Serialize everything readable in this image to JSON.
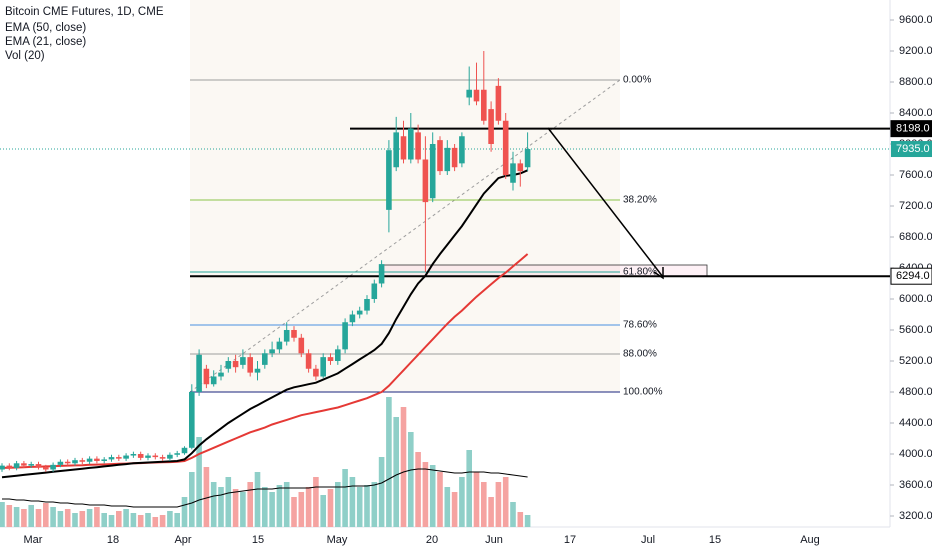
{
  "chart_data": {
    "type": "candlestick",
    "title": "Bitcoin CME Futures, 1D, CME",
    "indicators": [
      "EMA (50, close)",
      "EMA (21, close)",
      "Vol (20)"
    ],
    "up_color": "#26a69a",
    "down_color": "#ef5350",
    "open": [
      3800,
      3850,
      3820,
      3880,
      3850,
      3870,
      3830,
      3800,
      3860,
      3900,
      3880,
      3920,
      3900,
      3940,
      3910,
      3930,
      3960,
      3940,
      3980,
      4000,
      3950,
      3980,
      3960,
      3940,
      3990,
      4010,
      4080,
      4800,
      5100,
      4900,
      5000,
      5100,
      5200,
      5150,
      5250,
      5050,
      5150,
      5300,
      5350,
      5450,
      5600,
      5500,
      5300,
      5100,
      5000,
      5250,
      5200,
      5350,
      5700,
      5800,
      5850,
      6000,
      6200,
      7150,
      7700,
      8100,
      7800,
      8150,
      7800,
      7300,
      8050,
      7650,
      7950,
      7750,
      8600,
      8700,
      8700,
      8450,
      8750,
      8300,
      7500,
      7750,
      7700
    ],
    "high": [
      3880,
      3880,
      3910,
      3910,
      3900,
      3900,
      3860,
      3890,
      3930,
      3930,
      3950,
      3950,
      3970,
      3970,
      3960,
      3990,
      3990,
      4010,
      4030,
      4030,
      4010,
      4010,
      3990,
      4020,
      4040,
      4100,
      4900,
      5350,
      5150,
      5080,
      5150,
      5250,
      5280,
      5350,
      5300,
      5200,
      5350,
      5450,
      5500,
      5700,
      5650,
      5550,
      5350,
      5150,
      5300,
      5300,
      5400,
      5750,
      5850,
      5900,
      6050,
      6250,
      6500,
      8050,
      8350,
      8300,
      8400,
      8250,
      8100,
      8150,
      8100,
      8050,
      8000,
      8150,
      9000,
      9050,
      9200,
      8550,
      8850,
      8400,
      7900,
      7800,
      8150
    ],
    "low": [
      3770,
      3790,
      3790,
      3820,
      3820,
      3800,
      3770,
      3770,
      3830,
      3850,
      3850,
      3870,
      3870,
      3880,
      3880,
      3900,
      3910,
      3910,
      3950,
      3920,
      3920,
      3930,
      3910,
      3910,
      3960,
      3990,
      4060,
      4750,
      4850,
      4870,
      4950,
      5050,
      5050,
      5100,
      5000,
      4950,
      5100,
      5250,
      5300,
      5400,
      5450,
      5250,
      5050,
      4950,
      4980,
      5150,
      5150,
      5300,
      5650,
      5750,
      5800,
      5950,
      6150,
      6860,
      7650,
      7750,
      7750,
      7750,
      6350,
      7250,
      7600,
      7600,
      7650,
      7700,
      8500,
      8500,
      8250,
      7900,
      8250,
      7550,
      7400,
      7450,
      7650
    ],
    "close": [
      3850,
      3820,
      3880,
      3850,
      3870,
      3830,
      3800,
      3860,
      3900,
      3880,
      3920,
      3900,
      3940,
      3910,
      3930,
      3960,
      3940,
      3980,
      4000,
      3950,
      3980,
      3960,
      3940,
      3990,
      4010,
      4080,
      4800,
      5280,
      4900,
      5000,
      5050,
      5200,
      5120,
      5250,
      5050,
      5100,
      5300,
      5350,
      5450,
      5600,
      5500,
      5300,
      5100,
      5000,
      5250,
      5200,
      5350,
      5700,
      5800,
      5850,
      6000,
      6200,
      6450,
      7920,
      8150,
      7800,
      8200,
      7800,
      7250,
      8000,
      7650,
      7950,
      7700,
      8100,
      8700,
      8550,
      8300,
      8000,
      8300,
      7600,
      7750,
      7650,
      7935
    ],
    "lines": [
      {
        "name": "EMA (50, close)",
        "color": "#e53935",
        "values": [
          3820,
          3823,
          3826,
          3830,
          3833,
          3836,
          3840,
          3843,
          3846,
          3850,
          3853,
          3856,
          3860,
          3863,
          3866,
          3870,
          3873,
          3876,
          3880,
          3883,
          3886,
          3890,
          3893,
          3896,
          3900,
          3910,
          3950,
          4000,
          4040,
          4080,
          4120,
          4160,
          4200,
          4240,
          4280,
          4310,
          4340,
          4380,
          4410,
          4440,
          4470,
          4500,
          4520,
          4540,
          4560,
          4580,
          4600,
          4630,
          4660,
          4690,
          4720,
          4760,
          4800,
          4880,
          4980,
          5080,
          5180,
          5280,
          5380,
          5480,
          5580,
          5680,
          5770,
          5850,
          5940,
          6030,
          6110,
          6190,
          6270,
          6340,
          6420,
          6500,
          6580
        ]
      },
      {
        "name": "EMA (21, close)",
        "color": "#000000",
        "values": [
          3700,
          3710,
          3720,
          3730,
          3740,
          3750,
          3760,
          3770,
          3780,
          3790,
          3800,
          3810,
          3820,
          3830,
          3840,
          3850,
          3860,
          3870,
          3880,
          3885,
          3890,
          3895,
          3900,
          3905,
          3910,
          3930,
          4010,
          4110,
          4190,
          4260,
          4330,
          4400,
          4460,
          4520,
          4580,
          4630,
          4680,
          4730,
          4780,
          4830,
          4860,
          4880,
          4900,
          4920,
          4960,
          5000,
          5040,
          5100,
          5160,
          5220,
          5280,
          5340,
          5420,
          5560,
          5740,
          5900,
          6060,
          6200,
          6300,
          6450,
          6580,
          6700,
          6820,
          6940,
          7080,
          7220,
          7360,
          7460,
          7560,
          7590,
          7600,
          7620,
          7660
        ]
      }
    ],
    "volume": {
      "up_color": "#8fcfc8",
      "down_color": "#f5a3a1",
      "ma_color": "#000000",
      "values": [
        25,
        22,
        20,
        18,
        22,
        18,
        24,
        20,
        16,
        18,
        14,
        16,
        18,
        20,
        14,
        12,
        16,
        18,
        14,
        12,
        14,
        10,
        12,
        16,
        14,
        30,
        55,
        90,
        60,
        45,
        40,
        50,
        38,
        35,
        45,
        55,
        40,
        35,
        42,
        45,
        30,
        35,
        40,
        50,
        32,
        38,
        45,
        58,
        50,
        40,
        42,
        45,
        70,
        130,
        110,
        120,
        95,
        75,
        65,
        62,
        55,
        40,
        35,
        50,
        77,
        55,
        45,
        30,
        45,
        50,
        25,
        15,
        12
      ],
      "ma_values": [
        28,
        28,
        27,
        27,
        26,
        26,
        25,
        25,
        24,
        24,
        23,
        23,
        22,
        22,
        22,
        21,
        21,
        21,
        20,
        20,
        20,
        20,
        20,
        20,
        20,
        22,
        24,
        27,
        29,
        31,
        32,
        34,
        35,
        36,
        37,
        38,
        38,
        38,
        39,
        39,
        39,
        39,
        39,
        40,
        40,
        40,
        40,
        40,
        41,
        41,
        41,
        42,
        44,
        48,
        52,
        55,
        57,
        58,
        58,
        57,
        56,
        55,
        54,
        54,
        55,
        55,
        55,
        54,
        54,
        53,
        52,
        51,
        50
      ]
    },
    "ylim": [
      3058,
      9858
    ],
    "yticks": [
      {
        "value": 3200,
        "label": "3200.0"
      },
      {
        "value": 3600,
        "label": "3600.0"
      },
      {
        "value": 4000,
        "label": "4000.0"
      },
      {
        "value": 4400,
        "label": "4400.0"
      },
      {
        "value": 4800,
        "label": "4800.0"
      },
      {
        "value": 5200,
        "label": "5200.0"
      },
      {
        "value": 5600,
        "label": "5600.0"
      },
      {
        "value": 6000,
        "label": "6000.0"
      },
      {
        "value": 6400,
        "label": "6400.0"
      },
      {
        "value": 6800,
        "label": "6800.0"
      },
      {
        "value": 7200,
        "label": "7200.0"
      },
      {
        "value": 7600,
        "label": "7600.0"
      },
      {
        "value": 8000,
        "label": "8000.0"
      },
      {
        "value": 8400,
        "label": "8400.0"
      },
      {
        "value": 8800,
        "label": "8800.0"
      },
      {
        "value": 9200,
        "label": "9200.0"
      },
      {
        "value": 9600,
        "label": "9600.0"
      }
    ],
    "x_tick_labels": [
      "Mar",
      "18",
      "Apr",
      "15",
      "May",
      "20",
      "Jun",
      "17",
      "Jul",
      "15",
      "Aug"
    ],
    "fib_levels": [
      {
        "label": "0.00%",
        "value": 8826,
        "color": "#9e9e9e"
      },
      {
        "label": "38.20%",
        "value": 7277,
        "color": "#8bc34a"
      },
      {
        "label": "61.80%",
        "value": 6348,
        "color": "#26a69a"
      },
      {
        "label": "78.60%",
        "value": 5665,
        "color": "#4a90e2"
      },
      {
        "label": "88.00%",
        "value": 5290,
        "color": "#9e9e9e"
      },
      {
        "label": "100.00%",
        "value": 4800,
        "color": "#1a237e"
      }
    ],
    "price_lines": [
      {
        "value": 8198,
        "label": "8198.0"
      },
      {
        "value": 6294,
        "label": "6294.0"
      }
    ],
    "last_price": {
      "value": 7935,
      "label": "7935.0",
      "color": "#26a69a"
    }
  }
}
